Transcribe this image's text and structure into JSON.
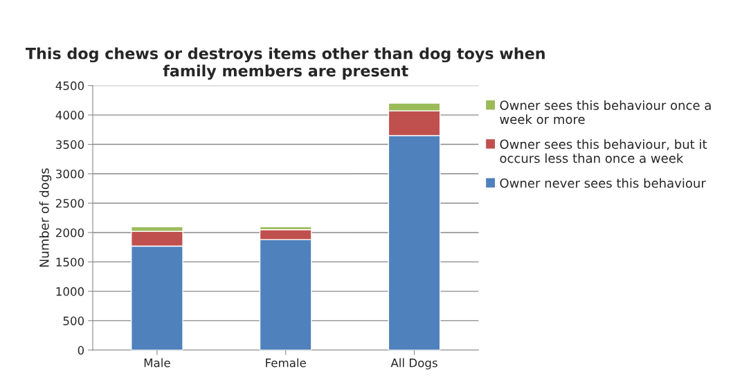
{
  "chart_data": {
    "type": "bar",
    "title": "This dog chews or destroys items other than dog toys when family members are present",
    "ylabel": "Number of dogs",
    "categories": [
      "Male",
      "Female",
      "All Dogs"
    ],
    "stacked": true,
    "series": [
      {
        "name": "Owner never sees this behaviour",
        "color": "#4f81bd",
        "values": [
          1770,
          1880,
          3650
        ]
      },
      {
        "name": "Owner sees this behaviour, but it occurs less than once a week",
        "color": "#c0504d",
        "values": [
          250,
          170,
          420
        ]
      },
      {
        "name": "Owner sees this behaviour once a week or more",
        "color": "#9bbb59",
        "values": [
          80,
          50,
          130
        ]
      }
    ],
    "ylim": [
      0,
      4500
    ],
    "yticks": [
      0,
      500,
      1000,
      1500,
      2000,
      2500,
      3000,
      3500,
      4000,
      4500
    ],
    "grid": "y",
    "legend": "right"
  }
}
